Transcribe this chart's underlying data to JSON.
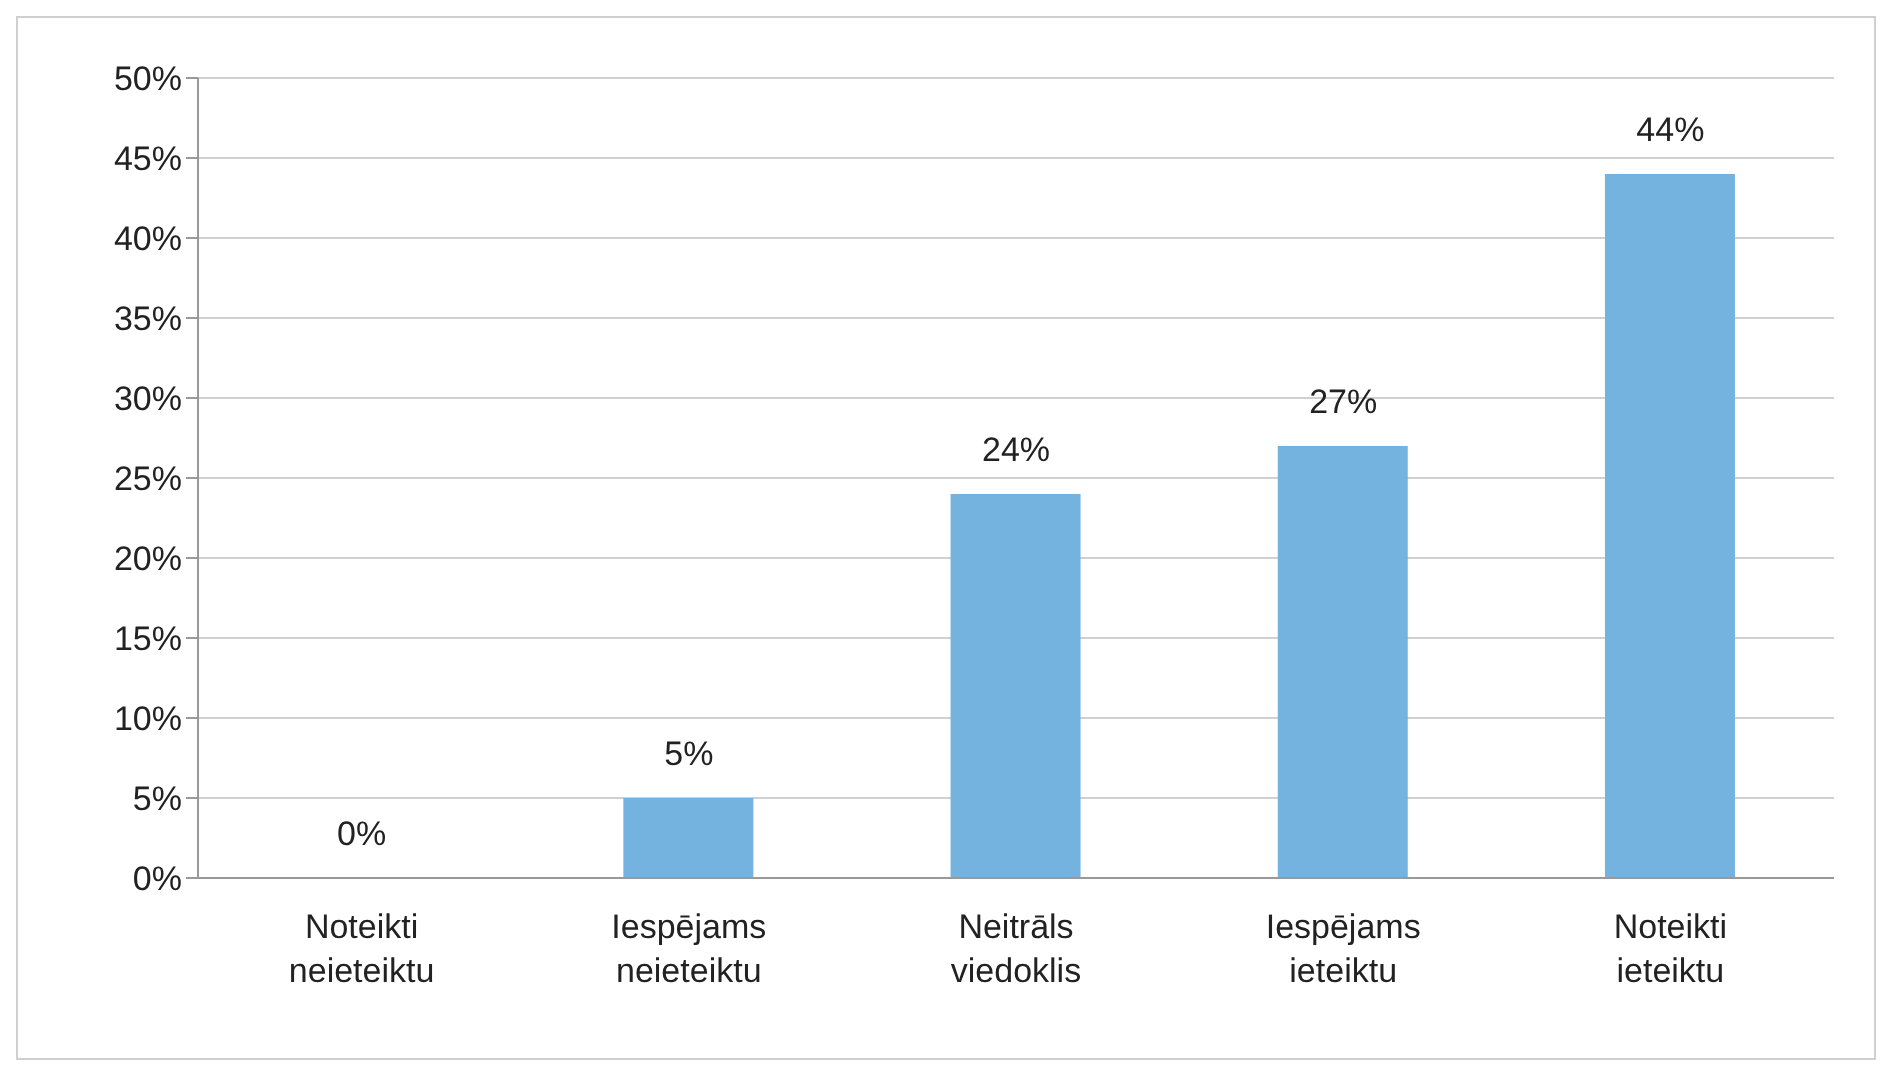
{
  "chart_data": {
    "type": "bar",
    "categories": [
      "Noteikti neieteiktu",
      "Iespējams neieteiktu",
      "Neitrāls viedoklis",
      "Iespējams ieteiktu",
      "Noteikti ieteiktu"
    ],
    "values": [
      0,
      5,
      24,
      27,
      44
    ],
    "value_labels": [
      "0%",
      "5%",
      "24%",
      "27%",
      "44%"
    ],
    "color": "#74b3e0",
    "ylim": [
      0,
      50
    ],
    "yticks": [
      {
        "value": 0,
        "label": "0%"
      },
      {
        "value": 5,
        "label": "5%"
      },
      {
        "value": 10,
        "label": "10%"
      },
      {
        "value": 15,
        "label": "15%"
      },
      {
        "value": 20,
        "label": "20%"
      },
      {
        "value": 25,
        "label": "25%"
      },
      {
        "value": 30,
        "label": "30%"
      },
      {
        "value": 35,
        "label": "35%"
      },
      {
        "value": 40,
        "label": "40%"
      },
      {
        "value": 45,
        "label": "45%"
      },
      {
        "value": 50,
        "label": "50%"
      }
    ],
    "grid": "y",
    "legend": false
  }
}
